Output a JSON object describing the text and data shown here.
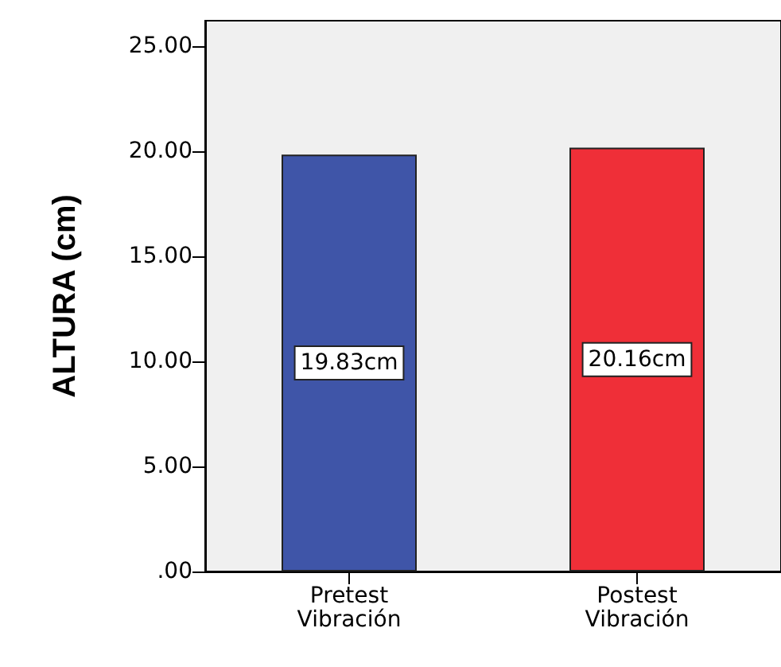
{
  "chart_data": {
    "type": "bar",
    "categories": [
      "Pretest\nVibración",
      "Postest\nVibración"
    ],
    "values": [
      19.83,
      20.16
    ],
    "colors": [
      "#3f55a8",
      "#ef2f38"
    ],
    "value_labels": [
      "19.83cm",
      "20.16cm"
    ],
    "ylabel": "ALTURA (cm)",
    "ylim": [
      0,
      26.2
    ],
    "yticks": [
      {
        "value": 0,
        "label": ".00"
      },
      {
        "value": 5,
        "label": "5.00"
      },
      {
        "value": 10,
        "label": "10.00"
      },
      {
        "value": 15,
        "label": "15.00"
      },
      {
        "value": 20,
        "label": "20.00"
      },
      {
        "value": 25,
        "label": "25.00"
      }
    ],
    "grid": false
  }
}
